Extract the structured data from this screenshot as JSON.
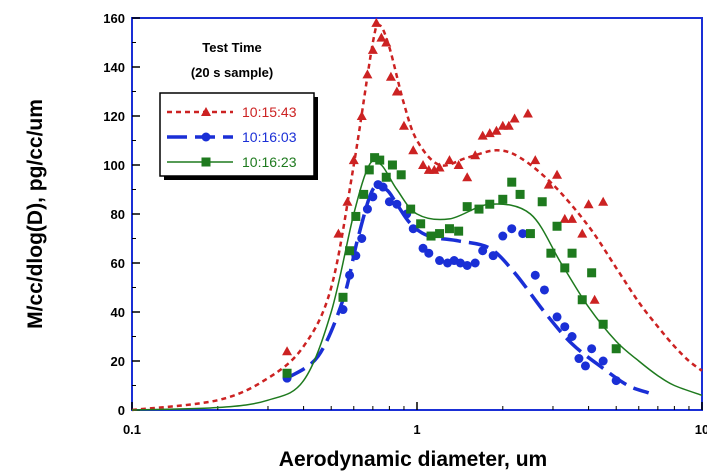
{
  "chart_data": {
    "type": "scatter",
    "title": "",
    "xlabel": "Aerodynamic diameter, um",
    "ylabel": "M/cc/dlog(D), pg/cc/um",
    "x_scale": "log",
    "xlim": [
      0.1,
      10
    ],
    "ylim": [
      0,
      160
    ],
    "x_ticks": [
      0.1,
      1,
      10
    ],
    "x_tick_labels": [
      "0.1",
      "1",
      "10"
    ],
    "y_ticks": [
      0,
      20,
      40,
      60,
      80,
      100,
      120,
      140,
      160
    ],
    "y_tick_labels": [
      "0",
      "20",
      "40",
      "60",
      "80",
      "100",
      "120",
      "140",
      "160"
    ],
    "grid": false,
    "legend": {
      "title_lines": [
        "Test Time",
        "(20 s sample)"
      ],
      "placement": "top-left"
    },
    "series": [
      {
        "name": "10:15:43",
        "color": "#cc2222",
        "marker": "triangle",
        "line_style": "dotted",
        "points": [
          [
            0.35,
            24
          ],
          [
            0.53,
            72
          ],
          [
            0.57,
            85
          ],
          [
            0.6,
            102
          ],
          [
            0.64,
            120
          ],
          [
            0.67,
            137
          ],
          [
            0.7,
            147
          ],
          [
            0.72,
            158
          ],
          [
            0.75,
            152
          ],
          [
            0.78,
            150
          ],
          [
            0.81,
            136
          ],
          [
            0.85,
            130
          ],
          [
            0.9,
            116
          ],
          [
            0.97,
            106
          ],
          [
            1.05,
            100
          ],
          [
            1.1,
            98
          ],
          [
            1.15,
            98
          ],
          [
            1.2,
            99
          ],
          [
            1.3,
            102
          ],
          [
            1.4,
            100
          ],
          [
            1.5,
            95
          ],
          [
            1.6,
            104
          ],
          [
            1.7,
            112
          ],
          [
            1.8,
            113
          ],
          [
            1.9,
            114
          ],
          [
            2.0,
            116
          ],
          [
            2.1,
            116
          ],
          [
            2.2,
            119
          ],
          [
            2.45,
            121
          ],
          [
            2.6,
            102
          ],
          [
            2.9,
            92
          ],
          [
            3.1,
            96
          ],
          [
            3.3,
            78
          ],
          [
            3.5,
            78
          ],
          [
            3.8,
            72
          ],
          [
            4.0,
            84
          ],
          [
            4.2,
            45
          ],
          [
            4.5,
            85
          ]
        ],
        "fit": [
          [
            0.1,
            0
          ],
          [
            0.2,
            4
          ],
          [
            0.3,
            13
          ],
          [
            0.4,
            26
          ],
          [
            0.5,
            50
          ],
          [
            0.6,
            100
          ],
          [
            0.7,
            150
          ],
          [
            0.74,
            157
          ],
          [
            0.8,
            148
          ],
          [
            0.9,
            125
          ],
          [
            1.0,
            110
          ],
          [
            1.2,
            100
          ],
          [
            1.5,
            103
          ],
          [
            1.9,
            106
          ],
          [
            2.3,
            103
          ],
          [
            3.0,
            92
          ],
          [
            4.0,
            75
          ],
          [
            5.0,
            58
          ],
          [
            6.0,
            44
          ],
          [
            7.0,
            34
          ],
          [
            8.0,
            26
          ],
          [
            9.0,
            20
          ],
          [
            10.0,
            16
          ]
        ]
      },
      {
        "name": "10:16:03",
        "color": "#1a2fd6",
        "marker": "circle",
        "line_style": "dashed",
        "points": [
          [
            0.35,
            13
          ],
          [
            0.55,
            41
          ],
          [
            0.58,
            55
          ],
          [
            0.61,
            63
          ],
          [
            0.64,
            70
          ],
          [
            0.67,
            82
          ],
          [
            0.7,
            87
          ],
          [
            0.73,
            92
          ],
          [
            0.76,
            91
          ],
          [
            0.8,
            85
          ],
          [
            0.85,
            84
          ],
          [
            0.92,
            80
          ],
          [
            0.97,
            74
          ],
          [
            1.05,
            66
          ],
          [
            1.1,
            64
          ],
          [
            1.2,
            61
          ],
          [
            1.28,
            60
          ],
          [
            1.35,
            61
          ],
          [
            1.42,
            60
          ],
          [
            1.5,
            59
          ],
          [
            1.6,
            60
          ],
          [
            1.7,
            65
          ],
          [
            1.85,
            63
          ],
          [
            2.0,
            71
          ],
          [
            2.15,
            74
          ],
          [
            2.35,
            72
          ],
          [
            2.6,
            55
          ],
          [
            2.8,
            49
          ],
          [
            3.1,
            38
          ],
          [
            3.3,
            34
          ],
          [
            3.5,
            30
          ],
          [
            3.7,
            21
          ],
          [
            3.9,
            18
          ],
          [
            4.1,
            25
          ],
          [
            4.5,
            20
          ],
          [
            5.0,
            12
          ]
        ],
        "fit": [
          [
            0.35,
            13
          ],
          [
            0.45,
            22
          ],
          [
            0.55,
            45
          ],
          [
            0.62,
            70
          ],
          [
            0.7,
            90
          ],
          [
            0.78,
            90
          ],
          [
            0.85,
            84
          ],
          [
            0.95,
            76
          ],
          [
            1.1,
            71
          ],
          [
            1.4,
            69
          ],
          [
            1.8,
            66
          ],
          [
            2.2,
            56
          ],
          [
            2.8,
            40
          ],
          [
            3.5,
            27
          ],
          [
            4.5,
            17
          ],
          [
            5.5,
            10
          ],
          [
            6.5,
            7
          ]
        ]
      },
      {
        "name": "10:16:23",
        "color": "#1e7a1e",
        "marker": "square",
        "line_style": "solid",
        "points": [
          [
            0.35,
            15
          ],
          [
            0.55,
            46
          ],
          [
            0.58,
            65
          ],
          [
            0.61,
            79
          ],
          [
            0.65,
            88
          ],
          [
            0.68,
            98
          ],
          [
            0.71,
            103
          ],
          [
            0.74,
            102
          ],
          [
            0.78,
            95
          ],
          [
            0.82,
            100
          ],
          [
            0.88,
            96
          ],
          [
            0.95,
            82
          ],
          [
            1.03,
            76
          ],
          [
            1.12,
            71
          ],
          [
            1.2,
            72
          ],
          [
            1.3,
            74
          ],
          [
            1.4,
            73
          ],
          [
            1.5,
            83
          ],
          [
            1.65,
            82
          ],
          [
            1.8,
            84
          ],
          [
            2.0,
            86
          ],
          [
            2.15,
            93
          ],
          [
            2.3,
            88
          ],
          [
            2.5,
            72
          ],
          [
            2.75,
            85
          ],
          [
            2.95,
            64
          ],
          [
            3.1,
            75
          ],
          [
            3.3,
            58
          ],
          [
            3.5,
            64
          ],
          [
            3.8,
            45
          ],
          [
            4.1,
            56
          ],
          [
            4.5,
            35
          ],
          [
            5.0,
            25
          ]
        ],
        "fit": [
          [
            0.1,
            0
          ],
          [
            0.2,
            1
          ],
          [
            0.3,
            4
          ],
          [
            0.4,
            12
          ],
          [
            0.5,
            40
          ],
          [
            0.6,
            80
          ],
          [
            0.68,
            100
          ],
          [
            0.75,
            100
          ],
          [
            0.85,
            90
          ],
          [
            1.0,
            80
          ],
          [
            1.3,
            78
          ],
          [
            1.8,
            84
          ],
          [
            2.5,
            80
          ],
          [
            3.2,
            60
          ],
          [
            4.0,
            42
          ],
          [
            5.0,
            28
          ],
          [
            6.0,
            20
          ],
          [
            7.0,
            14
          ],
          [
            8.0,
            10
          ],
          [
            10.0,
            6
          ]
        ]
      }
    ]
  }
}
